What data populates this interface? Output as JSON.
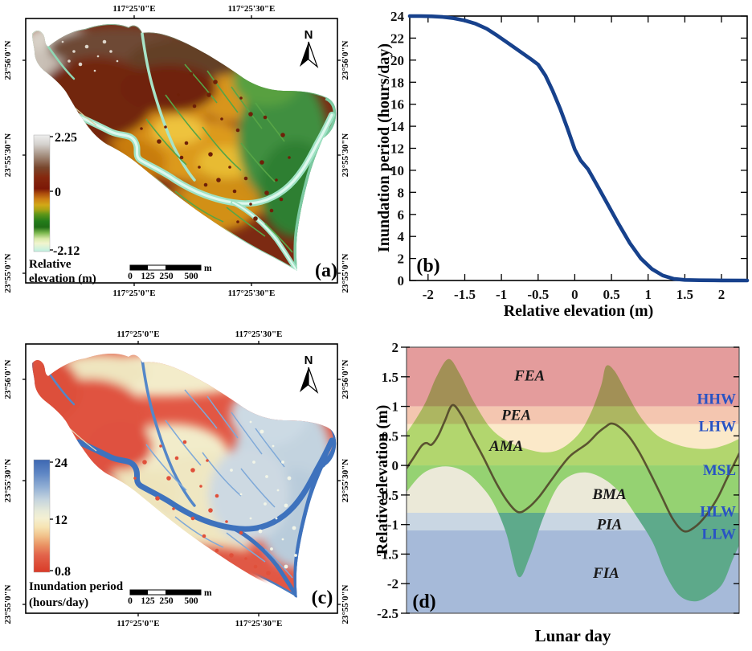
{
  "panels": {
    "a": {
      "label": "(a)",
      "north": "N",
      "top_coords": [
        "117°25'0\"E",
        "117°25'30\"E"
      ],
      "bottom_coords": [
        "117°25'0\"E",
        "117°25'30\"E"
      ],
      "left_coords": [
        "23°56'0\"N",
        "23°55'30\"N",
        "23°55'0\"N"
      ],
      "right_coords": [
        "23°56'0\"N",
        "23°55'30\"N",
        "23°55'0\"N"
      ],
      "legend": {
        "max": "2.25",
        "mid": "0",
        "min": "-2.12",
        "title1": "Relative",
        "title2": "elevation (m)"
      },
      "scalebar": {
        "t0": "0",
        "t1": "125",
        "t2": "250",
        "t3": "500",
        "unit": "m"
      }
    },
    "b": {
      "label": "(b)"
    },
    "c": {
      "label": "(c)",
      "north": "N",
      "top_coords": [
        "117°25'0\"E",
        "117°25'30\"E"
      ],
      "bottom_coords": [
        "117°25'0\"E",
        "117°25'30\"E"
      ],
      "left_coords": [
        "23°56'0\"N",
        "23°55'30\"N",
        "23°55'0\"N"
      ],
      "right_coords": [
        "23°56'0\"N",
        "23°55'30\"N",
        "23°55'0\"N"
      ],
      "legend": {
        "max": "24",
        "mid": "12",
        "min": "0.8",
        "title1": "Inundation period",
        "title2": "(hours/day)"
      },
      "scalebar": {
        "t0": "0",
        "t1": "125",
        "t2": "250",
        "t3": "500",
        "unit": "m"
      }
    },
    "d": {
      "label": "(d)"
    }
  },
  "chart_data": [
    {
      "id": "b",
      "type": "line",
      "xlabel": "Relative elevation (m)",
      "ylabel": "Inundation period (hours/day)",
      "xlim": [
        -2.25,
        2.35
      ],
      "ylim": [
        0,
        24
      ],
      "x_ticks": [
        -2,
        -1.5,
        -1,
        -0.5,
        0,
        0.5,
        1,
        1.5,
        2
      ],
      "y_ticks": [
        0,
        2,
        4,
        6,
        8,
        10,
        12,
        14,
        16,
        18,
        20,
        22,
        24
      ],
      "grid": false,
      "line_color": "#17418c",
      "points": [
        [
          -2.25,
          24
        ],
        [
          -2.1,
          24
        ],
        [
          -1.95,
          23.98
        ],
        [
          -1.8,
          23.92
        ],
        [
          -1.65,
          23.8
        ],
        [
          -1.5,
          23.6
        ],
        [
          -1.35,
          23.3
        ],
        [
          -1.2,
          22.85
        ],
        [
          -1.05,
          22.2
        ],
        [
          -0.9,
          21.5
        ],
        [
          -0.75,
          20.8
        ],
        [
          -0.6,
          20.1
        ],
        [
          -0.5,
          19.6
        ],
        [
          -0.4,
          18.6
        ],
        [
          -0.3,
          17.2
        ],
        [
          -0.2,
          15.6
        ],
        [
          -0.1,
          13.8
        ],
        [
          0,
          11.9
        ],
        [
          0.08,
          10.9
        ],
        [
          0.18,
          10.1
        ],
        [
          0.3,
          8.7
        ],
        [
          0.45,
          6.9
        ],
        [
          0.6,
          5.1
        ],
        [
          0.75,
          3.4
        ],
        [
          0.9,
          2.0
        ],
        [
          1.05,
          1.05
        ],
        [
          1.2,
          0.45
        ],
        [
          1.35,
          0.15
        ],
        [
          1.5,
          0.05
        ],
        [
          1.7,
          0.02
        ],
        [
          2.0,
          0.01
        ],
        [
          2.35,
          0
        ]
      ]
    },
    {
      "id": "d",
      "type": "area",
      "xlabel": "Lunar day",
      "ylabel": "Relative elevation (m)",
      "ylim": [
        -2.5,
        2
      ],
      "y_ticks": [
        2,
        1.5,
        1,
        0.5,
        0,
        -0.5,
        -1,
        -1.5,
        -2,
        -2.5
      ],
      "level_label_color": "#2953c4",
      "envelope_color": "#b5eb8c",
      "envelope_deep_color": "#58a886",
      "exposed_color": "#ebe9d8",
      "tide_color": "#4f4228",
      "zones": [
        {
          "label": "FEA",
          "from": 1.0,
          "to": 2.0,
          "color": "#e49c9c",
          "label_x": 0.37,
          "label_y": 1.52
        },
        {
          "label": "PEA",
          "from": 0.7,
          "to": 1.0,
          "color": "#f4c6b0",
          "label_x": 0.33,
          "label_y": 0.85
        },
        {
          "label": "AMA",
          "from": 0.0,
          "to": 0.7,
          "color": "#fbe9c9",
          "label_x": 0.3,
          "label_y": 0.33
        },
        {
          "label": "BMA",
          "from": -0.8,
          "to": 0.0,
          "color": "#d2e4cf",
          "label_x": 0.61,
          "label_y": -0.49
        },
        {
          "label": "PIA",
          "from": -1.1,
          "to": -0.8,
          "color": "#c9d6e3",
          "label_x": 0.61,
          "label_y": -1.0
        },
        {
          "label": "FIA",
          "from": -2.5,
          "to": -1.1,
          "color": "#a6bad9",
          "label_x": 0.6,
          "label_y": -1.82
        }
      ],
      "levels": [
        {
          "label": "HHW",
          "y": 1.0,
          "label_y": 1.12
        },
        {
          "label": "LHW",
          "y": 0.7,
          "label_y": 0.66
        },
        {
          "label": "MSL",
          "y": 0.0,
          "label_y": -0.08
        },
        {
          "label": "HLW",
          "y": -0.8,
          "label_y": -0.78
        },
        {
          "label": "LLW",
          "y": -1.1,
          "label_y": -1.16
        }
      ],
      "upper_envelope": [
        [
          0,
          0.55
        ],
        [
          0.03,
          0.8
        ],
        [
          0.06,
          1.1
        ],
        [
          0.09,
          1.5
        ],
        [
          0.126,
          1.8
        ],
        [
          0.16,
          1.55
        ],
        [
          0.2,
          1.1
        ],
        [
          0.25,
          0.65
        ],
        [
          0.3,
          0.42
        ],
        [
          0.36,
          0.28
        ],
        [
          0.42,
          0.22
        ],
        [
          0.47,
          0.3
        ],
        [
          0.52,
          0.55
        ],
        [
          0.555,
          0.9
        ],
        [
          0.585,
          1.35
        ],
        [
          0.6,
          1.68
        ],
        [
          0.625,
          1.6
        ],
        [
          0.66,
          1.25
        ],
        [
          0.7,
          0.85
        ],
        [
          0.745,
          0.55
        ],
        [
          0.79,
          0.4
        ],
        [
          0.85,
          0.3
        ],
        [
          0.91,
          0.28
        ],
        [
          0.96,
          0.35
        ],
        [
          1.0,
          0.45
        ]
      ],
      "lower_envelope": [
        [
          0,
          -0.45
        ],
        [
          0.04,
          -0.18
        ],
        [
          0.08,
          -0.05
        ],
        [
          0.13,
          -0.02
        ],
        [
          0.18,
          -0.12
        ],
        [
          0.22,
          -0.32
        ],
        [
          0.26,
          -0.62
        ],
        [
          0.3,
          -1.15
        ],
        [
          0.336,
          -1.88
        ],
        [
          0.37,
          -1.55
        ],
        [
          0.41,
          -0.9
        ],
        [
          0.45,
          -0.4
        ],
        [
          0.49,
          -0.18
        ],
        [
          0.54,
          -0.12
        ],
        [
          0.59,
          -0.22
        ],
        [
          0.64,
          -0.45
        ],
        [
          0.69,
          -0.85
        ],
        [
          0.74,
          -1.3
        ],
        [
          0.78,
          -1.85
        ],
        [
          0.82,
          -2.2
        ],
        [
          0.867,
          -2.3
        ],
        [
          0.91,
          -2.2
        ],
        [
          0.95,
          -2.0
        ],
        [
          0.98,
          -1.6
        ],
        [
          1.0,
          -1.35
        ]
      ],
      "tide_curve": [
        [
          0,
          -0.05
        ],
        [
          0.02,
          0.12
        ],
        [
          0.045,
          0.33
        ],
        [
          0.06,
          0.38
        ],
        [
          0.075,
          0.35
        ],
        [
          0.095,
          0.5
        ],
        [
          0.115,
          0.75
        ],
        [
          0.138,
          1.02
        ],
        [
          0.165,
          0.85
        ],
        [
          0.195,
          0.52
        ],
        [
          0.23,
          0.15
        ],
        [
          0.27,
          -0.3
        ],
        [
          0.305,
          -0.62
        ],
        [
          0.336,
          -0.79
        ],
        [
          0.365,
          -0.72
        ],
        [
          0.4,
          -0.52
        ],
        [
          0.435,
          -0.25
        ],
        [
          0.465,
          -0.02
        ],
        [
          0.49,
          0.15
        ],
        [
          0.515,
          0.26
        ],
        [
          0.545,
          0.38
        ],
        [
          0.575,
          0.55
        ],
        [
          0.6,
          0.66
        ],
        [
          0.616,
          0.71
        ],
        [
          0.64,
          0.65
        ],
        [
          0.67,
          0.48
        ],
        [
          0.7,
          0.22
        ],
        [
          0.73,
          -0.1
        ],
        [
          0.765,
          -0.5
        ],
        [
          0.8,
          -0.9
        ],
        [
          0.833,
          -1.11
        ],
        [
          0.865,
          -1.05
        ],
        [
          0.9,
          -0.85
        ],
        [
          0.935,
          -0.55
        ],
        [
          0.965,
          -0.2
        ],
        [
          1.0,
          0.2
        ]
      ]
    }
  ]
}
